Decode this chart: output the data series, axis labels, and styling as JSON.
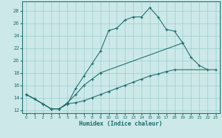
{
  "title": "",
  "xlabel": "Humidex (Indice chaleur)",
  "background_color": "#cce8e8",
  "grid_color": "#99cccc",
  "line_color": "#1a6b6b",
  "xlim": [
    -0.5,
    23.5
  ],
  "ylim": [
    11.5,
    29.5
  ],
  "xticks": [
    0,
    1,
    2,
    3,
    4,
    5,
    6,
    7,
    8,
    9,
    10,
    11,
    12,
    13,
    14,
    15,
    16,
    17,
    18,
    19,
    20,
    21,
    22,
    23
  ],
  "yticks": [
    12,
    14,
    16,
    18,
    20,
    22,
    24,
    26,
    28
  ],
  "series1_x": [
    0,
    1,
    2,
    3,
    4,
    5,
    6,
    7,
    8,
    9,
    10,
    11,
    12,
    13,
    14,
    15,
    16,
    17,
    18,
    19
  ],
  "series1_y": [
    14.5,
    13.8,
    13.0,
    12.2,
    12.2,
    13.0,
    15.5,
    17.5,
    19.5,
    21.5,
    24.8,
    25.2,
    26.5,
    27.0,
    27.0,
    28.5,
    27.0,
    25.0,
    24.7,
    22.8
  ],
  "series2_seg1_x": [
    0,
    1,
    2,
    3,
    4,
    5,
    6,
    7,
    8,
    9
  ],
  "series2_seg1_y": [
    14.5,
    13.8,
    13.0,
    12.2,
    12.2,
    13.2,
    14.5,
    16.0,
    17.0,
    18.0
  ],
  "series2_seg2_x": [
    9,
    19,
    20,
    21,
    22
  ],
  "series2_seg2_y": [
    18.0,
    22.8,
    20.5,
    19.2,
    18.5
  ],
  "series3_x": [
    0,
    2,
    3,
    4,
    5,
    6,
    7,
    8,
    9,
    10,
    11,
    12,
    13,
    14,
    15,
    16,
    17,
    18,
    23
  ],
  "series3_y": [
    14.5,
    13.0,
    12.2,
    12.2,
    13.0,
    13.2,
    13.5,
    14.0,
    14.5,
    15.0,
    15.5,
    16.0,
    16.5,
    17.0,
    17.5,
    17.8,
    18.2,
    18.5,
    18.5
  ]
}
